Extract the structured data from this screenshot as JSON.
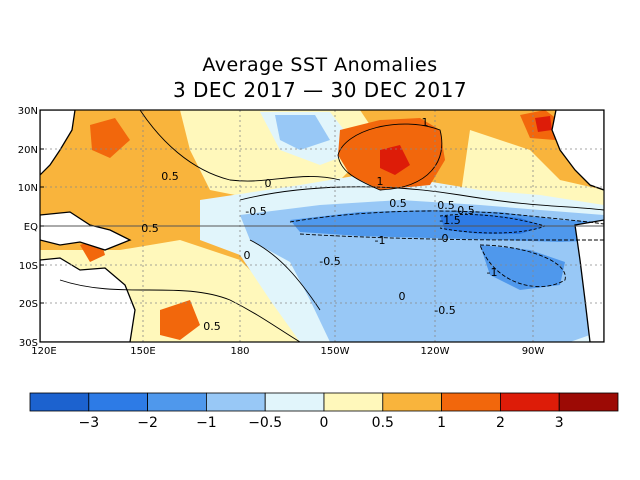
{
  "title": "Average SST Anomalies",
  "subtitle": "3 DEC 2017 — 30 DEC 2017",
  "map": {
    "lat_ticks": [
      "30N",
      "20N",
      "10N",
      "EQ",
      "10S",
      "20S",
      "30S"
    ],
    "lon_ticks": [
      "120E",
      "150E",
      "180",
      "150W",
      "120W",
      "90W"
    ],
    "contour_labels": [
      "1",
      "1",
      "0.5",
      "0",
      "0.5",
      "0.5",
      "-0.5",
      "0",
      "-0.5",
      "-1",
      "0.5",
      "-1.5",
      "0",
      "-0.5",
      "-1",
      "0",
      "-0.5",
      "0.5"
    ]
  },
  "colorbar": {
    "colors": [
      "#1c62cf",
      "#2d7be6",
      "#4f98ec",
      "#98c8f6",
      "#e1f5fb",
      "#fff8bb",
      "#f9b43c",
      "#f2670c",
      "#dd1c08",
      "#9c0a05"
    ],
    "tick_labels": [
      "−3",
      "−2",
      "−1",
      "−0.5",
      "0",
      "0.5",
      "1",
      "2",
      "3"
    ]
  },
  "colors": {
    "land": "#ffffff",
    "coast": "#000000",
    "grid": "#888888"
  }
}
